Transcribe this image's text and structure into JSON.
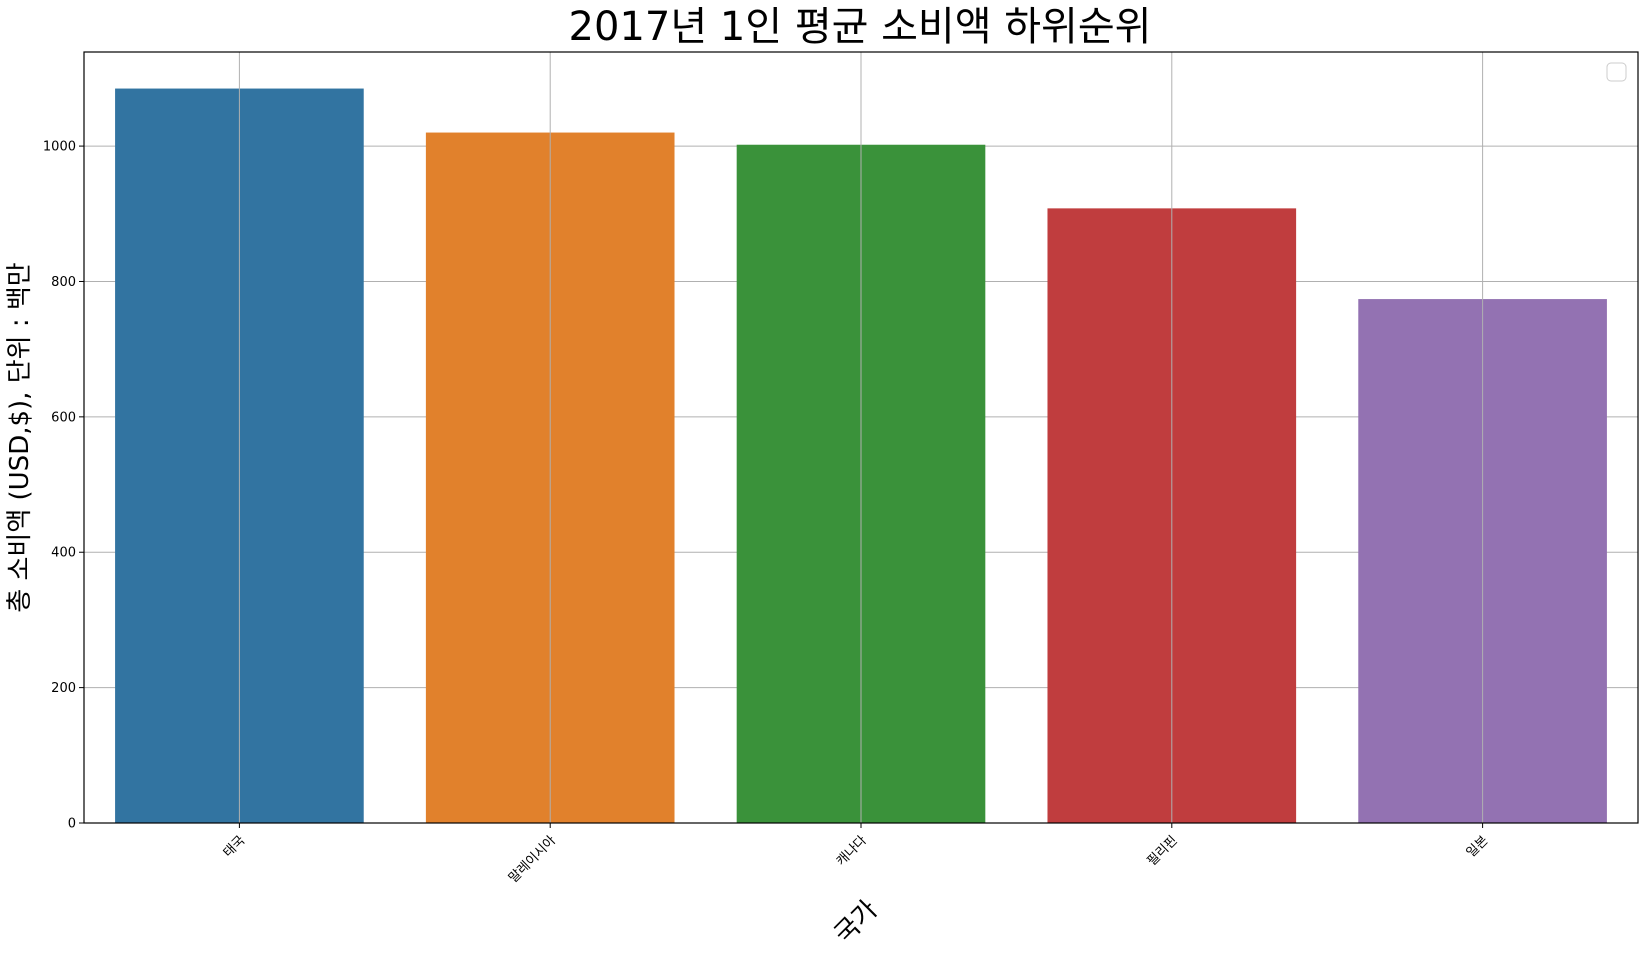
{
  "chart_data": {
    "type": "bar",
    "title": "2017년 1인 평균 소비액 하위순위",
    "xlabel": "국가",
    "ylabel": "총 소비액 (USD,$), 단위 : 백만",
    "categories": [
      "태국",
      "말레이시아",
      "캐나다",
      "필리핀",
      "일본"
    ],
    "values": [
      1085,
      1020,
      1002,
      908,
      774
    ],
    "colors": [
      "#3274a1",
      "#e1812c",
      "#3a923a",
      "#c03d3e",
      "#9372b2"
    ],
    "ylim": [
      0,
      1139
    ],
    "yticks": [
      0,
      200,
      400,
      600,
      800,
      1000
    ],
    "grid": true,
    "legend": "top-right (empty)"
  }
}
